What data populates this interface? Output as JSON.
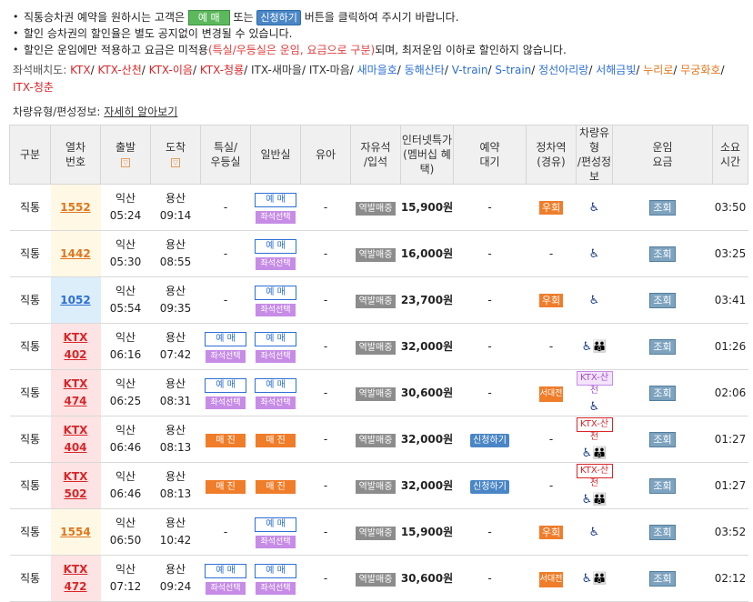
{
  "notices": {
    "line1_pre": "직통승차권 예약을 원하시는 고객은",
    "line1_btn1": "예 매",
    "line1_mid": "또는",
    "line1_btn2": "신청하기",
    "line1_post": "버튼을 클릭하여 주시기 바랍니다.",
    "line2": "할인 승차권의 할인율은 별도 공지없이 변경될 수 있습니다.",
    "line3_pre": "할인은 운임에만 적용하고 요금은 미적용",
    "line3_red": "(특실/우등실은 운임, 요금으로 구분)",
    "line3_post": "되며, 최저운임 이하로 할인하지 않습니다."
  },
  "seat_legend": {
    "label": "좌석배치도:",
    "items": [
      {
        "text": "KTX",
        "color": "#d8262a"
      },
      {
        "text": "KTX-산천",
        "color": "#d8262a"
      },
      {
        "text": "KTX-이음",
        "color": "#d8262a"
      },
      {
        "text": "KTX-청룡",
        "color": "#d8262a"
      },
      {
        "text": "ITX-새마을",
        "color": "#333333"
      },
      {
        "text": "ITX-마음",
        "color": "#333333"
      },
      {
        "text": "새마을호",
        "color": "#2d6fd3"
      },
      {
        "text": "동해산타",
        "color": "#2d6fd3"
      },
      {
        "text": "V-train",
        "color": "#2d6fd3"
      },
      {
        "text": "S-train",
        "color": "#2d6fd3"
      },
      {
        "text": "정선아리랑",
        "color": "#2d6fd3"
      },
      {
        "text": "서해금빛",
        "color": "#2d6fd3"
      },
      {
        "text": "누리로",
        "color": "#e0761c"
      },
      {
        "text": "무궁화호",
        "color": "#e0761c"
      },
      {
        "text": "ITX-청춘",
        "color": "#d8262a"
      }
    ]
  },
  "info": {
    "label": "차량유형/편성정보:",
    "link": "자세히 알아보기"
  },
  "headers": {
    "type": "구분",
    "train_no_1": "열차",
    "train_no_2": "번호",
    "depart": "출발",
    "arrive": "도착",
    "special_1": "특실/",
    "special_2": "우등실",
    "general": "일반실",
    "infant": "유아",
    "free_1": "자유석",
    "free_2": "/입석",
    "price_1": "인터넷특가",
    "price_2": "(멤버십 혜택)",
    "reserve_1": "예약",
    "reserve_2": "대기",
    "stop_1": "정차역",
    "stop_2": "(경유)",
    "car_1": "차량유형",
    "car_2": "/편성정보",
    "fare_1": "운임",
    "fare_2": "요금",
    "time_1": "소요",
    "time_2": "시간"
  },
  "labels": {
    "yemae": "예 매",
    "jwaseok": "좌석선택",
    "maejin": "매 진",
    "station_sale": "역발매중",
    "wuhoe": "우회",
    "seodaejeon": "서대전",
    "signup": "신청하기",
    "johoe": "조회",
    "dash": "-",
    "ktx_sancheon": "KTX-산천"
  },
  "rows": [
    {
      "type": "직통",
      "no1": "",
      "no2": "1552",
      "depart_st": "익산",
      "depart_t": "05:24",
      "arrive_st": "용산",
      "arrive_t": "09:14",
      "special": "none",
      "general": "yemae+jwaseok",
      "price": "15,900원",
      "reserve": "-",
      "stop": "우회",
      "car": "icon1",
      "time": "03:50",
      "color": "yellow"
    },
    {
      "type": "직통",
      "no1": "",
      "no2": "1442",
      "depart_st": "익산",
      "depart_t": "05:30",
      "arrive_st": "용산",
      "arrive_t": "08:55",
      "special": "none",
      "general": "yemae+jwaseok",
      "price": "16,000원",
      "reserve": "-",
      "stop": "-",
      "car": "icon1",
      "time": "03:25",
      "color": "yellow"
    },
    {
      "type": "직통",
      "no1": "",
      "no2": "1052",
      "depart_st": "익산",
      "depart_t": "05:54",
      "arrive_st": "용산",
      "arrive_t": "09:35",
      "special": "none",
      "general": "yemae+jwaseok",
      "price": "23,700원",
      "reserve": "-",
      "stop": "우회",
      "car": "icon1",
      "time": "03:41",
      "color": "blue"
    },
    {
      "type": "직통",
      "no1": "KTX",
      "no2": "402",
      "depart_st": "익산",
      "depart_t": "06:16",
      "arrive_st": "용산",
      "arrive_t": "07:42",
      "special": "yemae+jwaseok",
      "general": "yemae+jwaseok",
      "price": "32,000원",
      "reserve": "-",
      "stop": "-",
      "car": "icon2",
      "time": "01:26",
      "color": "red"
    },
    {
      "type": "직통",
      "no1": "KTX",
      "no2": "474",
      "depart_st": "익산",
      "depart_t": "06:25",
      "arrive_st": "용산",
      "arrive_t": "08:31",
      "special": "yemae+jwaseok",
      "general": "yemae+jwaseok",
      "price": "30,600원",
      "reserve": "-",
      "stop": "서대전",
      "car": "sancheon-purple",
      "time": "02:06",
      "color": "red"
    },
    {
      "type": "직통",
      "no1": "KTX",
      "no2": "404",
      "depart_st": "익산",
      "depart_t": "06:46",
      "arrive_st": "용산",
      "arrive_t": "08:13",
      "special": "maejin",
      "general": "maejin",
      "price": "32,000원",
      "reserve": "신청하기",
      "stop": "-",
      "car": "sancheon-red",
      "time": "01:27",
      "color": "red"
    },
    {
      "type": "직통",
      "no1": "KTX",
      "no2": "502",
      "depart_st": "익산",
      "depart_t": "06:46",
      "arrive_st": "용산",
      "arrive_t": "08:13",
      "special": "maejin",
      "general": "maejin",
      "price": "32,000원",
      "reserve": "신청하기",
      "stop": "-",
      "car": "sancheon-red",
      "time": "01:27",
      "color": "red"
    },
    {
      "type": "직통",
      "no1": "",
      "no2": "1554",
      "depart_st": "익산",
      "depart_t": "06:50",
      "arrive_st": "용산",
      "arrive_t": "10:42",
      "special": "none",
      "general": "yemae+jwaseok",
      "price": "15,900원",
      "reserve": "-",
      "stop": "우회",
      "car": "icon1",
      "time": "03:52",
      "color": "yellow"
    },
    {
      "type": "직통",
      "no1": "KTX",
      "no2": "472",
      "depart_st": "익산",
      "depart_t": "07:12",
      "arrive_st": "용산",
      "arrive_t": "09:24",
      "special": "yemae+jwaseok",
      "general": "yemae+jwaseok",
      "price": "30,600원",
      "reserve": "-",
      "stop": "서대전",
      "car": "icon2",
      "time": "02:12",
      "color": "red"
    }
  ],
  "icons": {
    "wheelchair": "♿",
    "family": "👪"
  }
}
